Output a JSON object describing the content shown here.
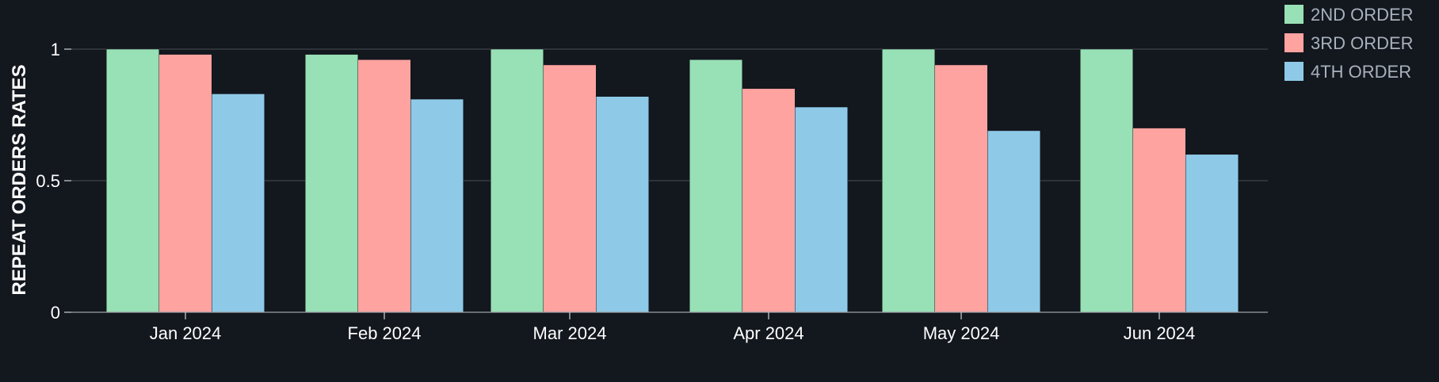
{
  "chart_data": {
    "type": "bar",
    "title": "",
    "xlabel": "",
    "ylabel": "REPEAT ORDERS RATES",
    "categories": [
      "Jan 2024",
      "Feb 2024",
      "Mar 2024",
      "Apr 2024",
      "May 2024",
      "Jun 2024"
    ],
    "series": [
      {
        "name": "2ND ORDER",
        "color": "#98e0b5",
        "values": [
          1.0,
          0.98,
          1.0,
          0.96,
          1.0,
          1.0
        ]
      },
      {
        "name": "3RD ORDER",
        "color": "#ffa3a0",
        "values": [
          0.98,
          0.96,
          0.94,
          0.85,
          0.94,
          0.7
        ]
      },
      {
        "name": "4TH ORDER",
        "color": "#8ecae8",
        "values": [
          0.83,
          0.81,
          0.82,
          0.78,
          0.69,
          0.6
        ]
      }
    ],
    "ylim": [
      0,
      1
    ],
    "yticks": [
      "0",
      "0.5",
      "1"
    ],
    "grid": true,
    "legend_position": "top-right"
  },
  "colors": {
    "background": "#13171e",
    "gridline": "#4a4f57"
  }
}
